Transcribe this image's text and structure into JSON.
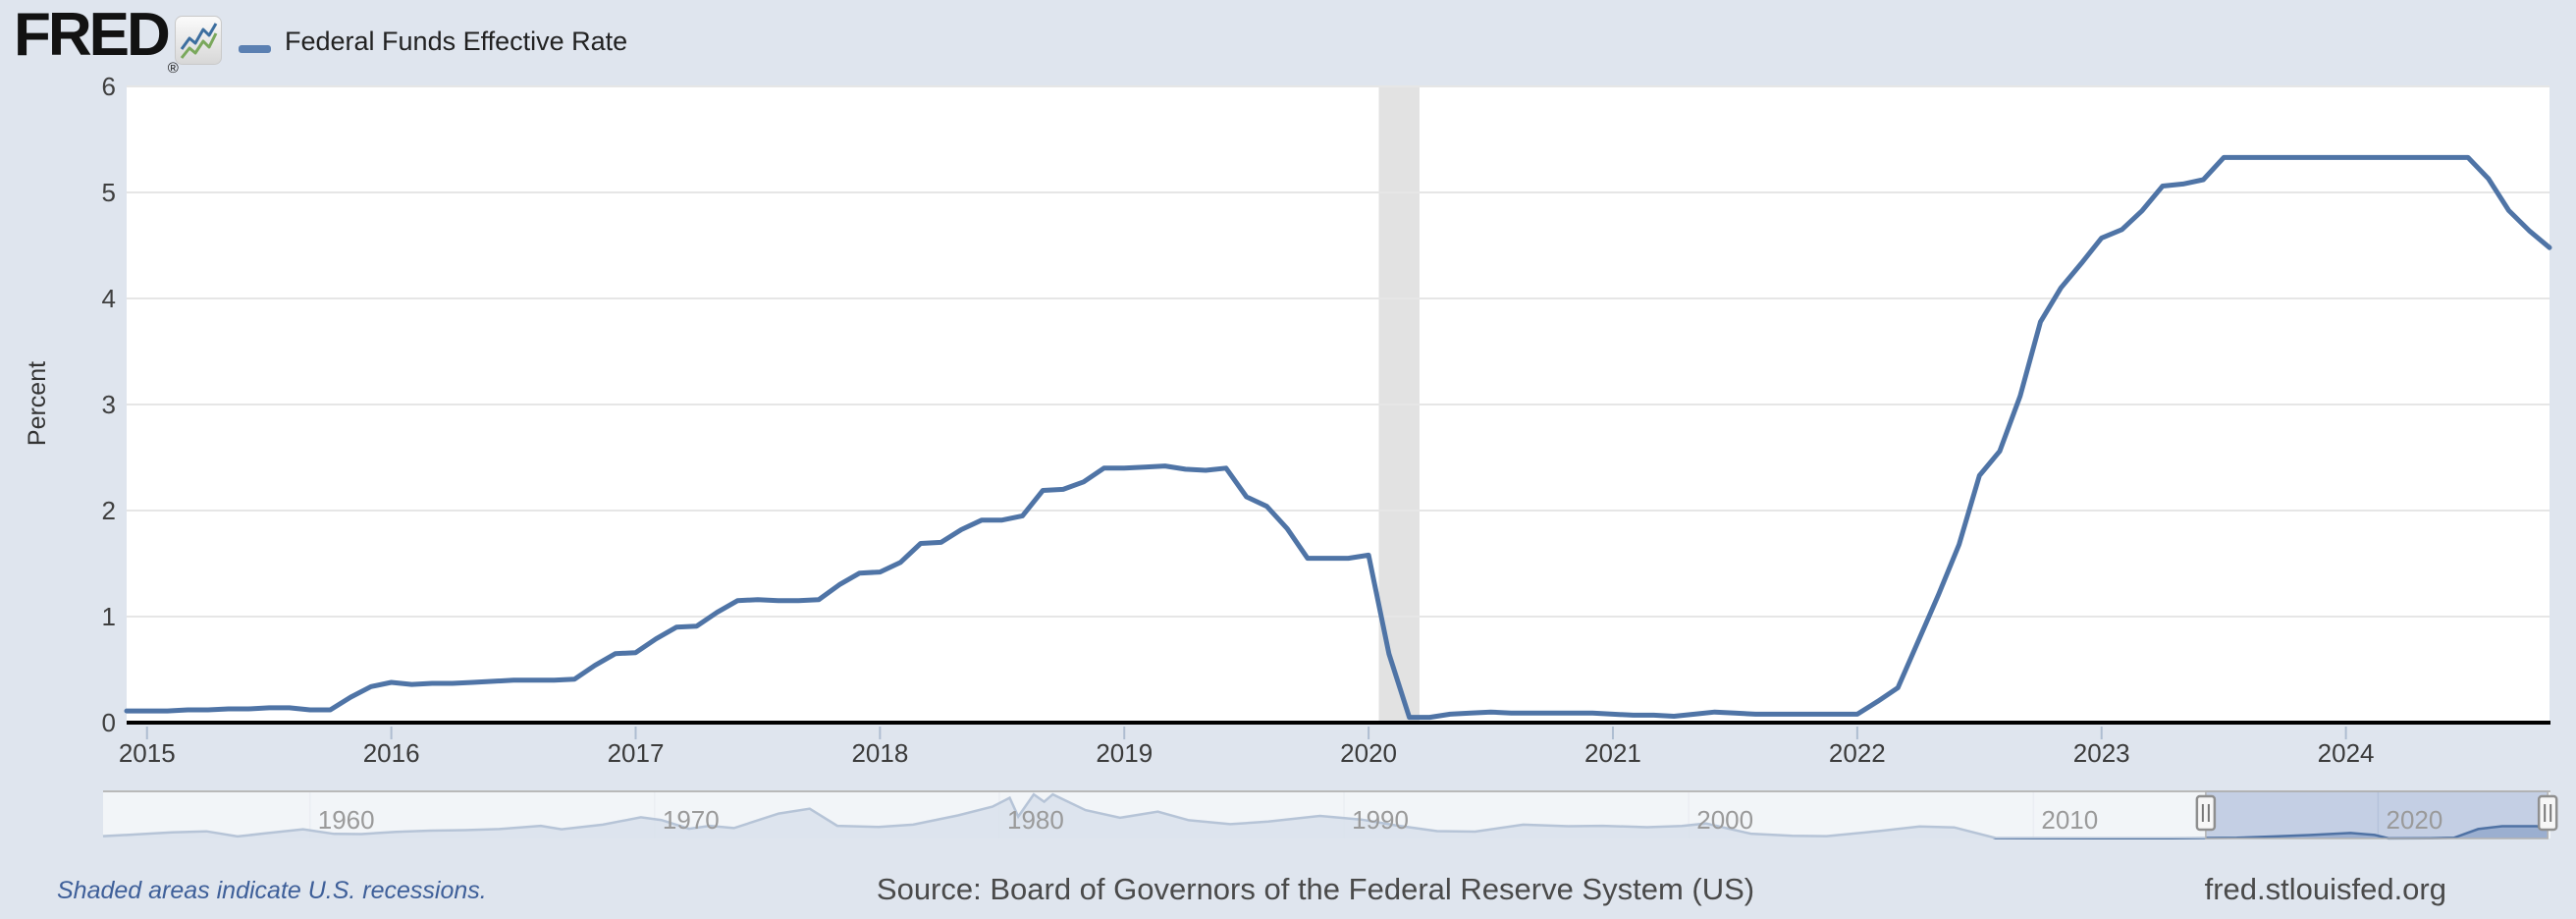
{
  "header": {
    "logo_text": "FRED",
    "registered_mark": "®",
    "legend_label": "Federal Funds Effective Rate"
  },
  "y_axis": {
    "title": "Percent"
  },
  "footer": {
    "note": "Shaded areas indicate U.S. recessions.",
    "source": "Source: Board of Governors of the Federal Reserve System (US)",
    "site": "fred.stlouisfed.org"
  },
  "colors": {
    "page_bg": "#dfe5ee",
    "plot_bg": "#ffffff",
    "gridline": "#e6e6e6",
    "axis": "#000000",
    "line": "#4f74a6",
    "recession_band": "#e2e2e2",
    "tick_mark": "#aebdd1",
    "nav_area_fill": "#9db1cd",
    "nav_line": "#4a6d9c",
    "nav_top_border": "#b9b9b9",
    "nav_gridline": "#ccd4e0",
    "nav_mask": "rgba(255,255,255,0.6)",
    "window_fill": "rgba(102,134,198,0.22)",
    "window_border": "#b3b3b3",
    "handle_fill": "#f7f7f7",
    "handle_border": "#8f8f8f",
    "handle_grip": "#777777",
    "logo_icon_blue": "#3c6e9f",
    "logo_icon_green": "#7aa85c"
  },
  "chart_data": [
    {
      "type": "line",
      "name": "Federal Funds Effective Rate",
      "unit": "Percent",
      "frequency": "monthly",
      "start": "2015-01",
      "end": "2024-12",
      "ylim": [
        0,
        6
      ],
      "yticks": [
        6,
        5,
        4,
        3,
        2,
        1,
        0
      ],
      "xticks": [
        "2015",
        "2016",
        "2017",
        "2018",
        "2019",
        "2020",
        "2021",
        "2022",
        "2023",
        "2024"
      ],
      "grid": true,
      "legend_position": "top-left",
      "recessions": [
        {
          "start": "2020-02",
          "end": "2020-04"
        }
      ],
      "values": [
        0.11,
        0.11,
        0.11,
        0.12,
        0.12,
        0.13,
        0.13,
        0.14,
        0.14,
        0.12,
        0.12,
        0.24,
        0.34,
        0.38,
        0.36,
        0.37,
        0.37,
        0.38,
        0.39,
        0.4,
        0.4,
        0.4,
        0.41,
        0.54,
        0.65,
        0.66,
        0.79,
        0.9,
        0.91,
        1.04,
        1.15,
        1.16,
        1.15,
        1.15,
        1.16,
        1.3,
        1.41,
        1.42,
        1.51,
        1.69,
        1.7,
        1.82,
        1.91,
        1.91,
        1.95,
        2.19,
        2.2,
        2.27,
        2.4,
        2.4,
        2.41,
        2.42,
        2.39,
        2.38,
        2.4,
        2.13,
        2.04,
        1.83,
        1.55,
        1.55,
        1.55,
        1.58,
        0.65,
        0.05,
        0.05,
        0.08,
        0.09,
        0.1,
        0.09,
        0.09,
        0.09,
        0.09,
        0.09,
        0.08,
        0.07,
        0.07,
        0.06,
        0.08,
        0.1,
        0.09,
        0.08,
        0.08,
        0.08,
        0.08,
        0.08,
        0.08,
        0.2,
        0.33,
        0.77,
        1.21,
        1.68,
        2.33,
        2.56,
        3.08,
        3.78,
        4.1,
        4.33,
        4.57,
        4.65,
        4.83,
        5.06,
        5.08,
        5.12,
        5.33,
        5.33,
        5.33,
        5.33,
        5.33,
        5.33,
        5.33,
        5.33,
        5.33,
        5.33,
        5.33,
        5.33,
        5.33,
        5.13,
        4.83,
        4.64,
        4.48
      ]
    },
    {
      "type": "area",
      "role": "navigator",
      "x_range": [
        1954,
        2025
      ],
      "ylim": [
        0,
        20
      ],
      "decade_labels": [
        "1960",
        "1970",
        "1980",
        "1990",
        "2000",
        "2010",
        "2020"
      ],
      "decade_years": [
        1960,
        1970,
        1980,
        1990,
        2000,
        2010,
        2020
      ],
      "selected_range": [
        2015,
        2024.92
      ],
      "points": [
        [
          1954,
          1.0
        ],
        [
          1955,
          1.8
        ],
        [
          1956,
          2.7
        ],
        [
          1957,
          3.1
        ],
        [
          1957.9,
          0.9
        ],
        [
          1958.8,
          2.4
        ],
        [
          1959.8,
          4.0
        ],
        [
          1960.7,
          2.0
        ],
        [
          1961.5,
          1.9
        ],
        [
          1962.5,
          2.9
        ],
        [
          1963.5,
          3.4
        ],
        [
          1964.5,
          3.6
        ],
        [
          1965.5,
          4.1
        ],
        [
          1966.7,
          5.5
        ],
        [
          1967.3,
          4.0
        ],
        [
          1968.5,
          6.0
        ],
        [
          1969.6,
          9.2
        ],
        [
          1970.2,
          8.0
        ],
        [
          1971.0,
          4.2
        ],
        [
          1971.6,
          5.5
        ],
        [
          1972.3,
          4.5
        ],
        [
          1973.6,
          10.8
        ],
        [
          1974.5,
          12.9
        ],
        [
          1975.3,
          5.5
        ],
        [
          1976.5,
          5.0
        ],
        [
          1977.5,
          6.0
        ],
        [
          1978.8,
          10.0
        ],
        [
          1979.8,
          13.8
        ],
        [
          1980.3,
          17.6
        ],
        [
          1980.55,
          9.5
        ],
        [
          1981.0,
          19.1
        ],
        [
          1981.3,
          15.9
        ],
        [
          1981.55,
          19.1
        ],
        [
          1982.5,
          12.3
        ],
        [
          1983.5,
          9.0
        ],
        [
          1984.6,
          11.6
        ],
        [
          1985.5,
          7.9
        ],
        [
          1986.7,
          6.2
        ],
        [
          1987.8,
          7.3
        ],
        [
          1989.3,
          9.8
        ],
        [
          1990.5,
          8.2
        ],
        [
          1991.5,
          5.7
        ],
        [
          1992.7,
          3.2
        ],
        [
          1993.8,
          3.0
        ],
        [
          1995.2,
          6.0
        ],
        [
          1996.5,
          5.3
        ],
        [
          1997.5,
          5.5
        ],
        [
          1998.8,
          4.9
        ],
        [
          1999.8,
          5.4
        ],
        [
          2000.5,
          6.5
        ],
        [
          2001.8,
          2.1
        ],
        [
          2003.0,
          1.2
        ],
        [
          2004.0,
          1.0
        ],
        [
          2005.5,
          3.2
        ],
        [
          2006.7,
          5.25
        ],
        [
          2007.7,
          4.8
        ],
        [
          2008.9,
          0.2
        ],
        [
          2010.0,
          0.15
        ],
        [
          2012.0,
          0.12
        ],
        [
          2014.0,
          0.09
        ],
        [
          2015.9,
          0.3
        ],
        [
          2017.0,
          0.9
        ],
        [
          2018.0,
          1.5
        ],
        [
          2019.2,
          2.4
        ],
        [
          2019.9,
          1.55
        ],
        [
          2020.3,
          0.05
        ],
        [
          2021.5,
          0.08
        ],
        [
          2022.2,
          0.3
        ],
        [
          2022.9,
          4.1
        ],
        [
          2023.6,
          5.33
        ],
        [
          2024.6,
          5.33
        ],
        [
          2024.95,
          4.48
        ]
      ]
    }
  ]
}
